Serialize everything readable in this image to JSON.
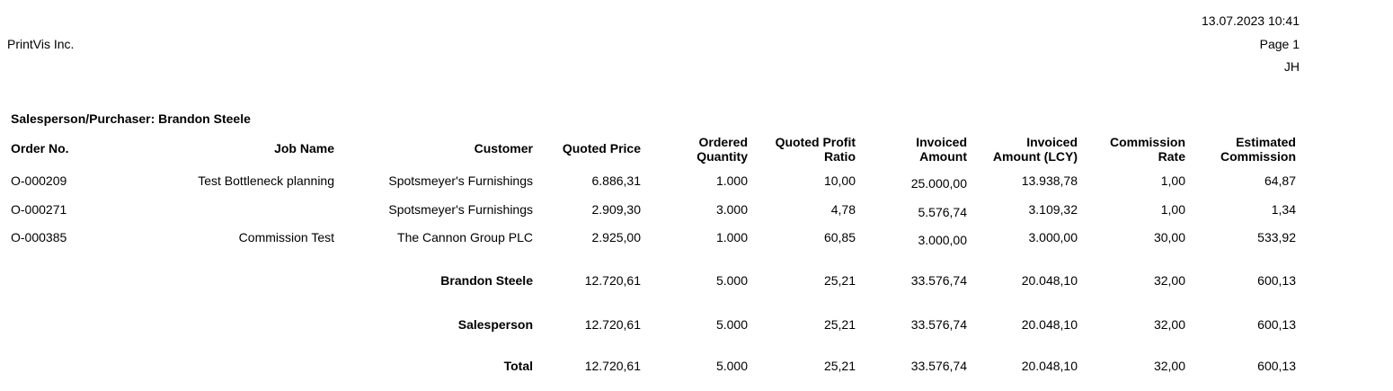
{
  "header": {
    "company": "PrintVis Inc.",
    "datetime": "13.07.2023 10:41",
    "page": "Page 1",
    "user": "JH"
  },
  "group": {
    "title": "Salesperson/Purchaser: Brandon Steele"
  },
  "columns": {
    "order_no": "Order No.",
    "job_name": "Job Name",
    "customer": "Customer",
    "quoted_price": "Quoted Price",
    "ordered_quantity_1": "Ordered",
    "ordered_quantity_2": "Quantity",
    "quoted_profit_ratio_1": "Quoted Profit",
    "quoted_profit_ratio_2": "Ratio",
    "invoiced_amount_1": "Invoiced",
    "invoiced_amount_2": "Amount",
    "invoiced_amount_lcy_1": "Invoiced",
    "invoiced_amount_lcy_2": "Amount (LCY)",
    "commission_rate_1": "Commission",
    "commission_rate_2": "Rate",
    "estimated_commission_1": "Estimated",
    "estimated_commission_2": "Commission"
  },
  "rows": [
    {
      "order_no": "O-000209",
      "job_name": "Test Bottleneck planning",
      "customer": "Spotsmeyer's Furnishings",
      "quoted_price": "6.886,31",
      "ordered_quantity": "1.000",
      "quoted_profit_ratio": "10,00",
      "invoiced_amount": "25.000,00",
      "invoiced_amount_lcy": "13.938,78",
      "commission_rate": "1,00",
      "estimated_commission": "64,87"
    },
    {
      "order_no": "O-000271",
      "job_name": "",
      "customer": "Spotsmeyer's Furnishings",
      "quoted_price": "2.909,30",
      "ordered_quantity": "3.000",
      "quoted_profit_ratio": "4,78",
      "invoiced_amount": "5.576,74",
      "invoiced_amount_lcy": "3.109,32",
      "commission_rate": "1,00",
      "estimated_commission": "1,34"
    },
    {
      "order_no": "O-000385",
      "job_name": "Commission Test",
      "customer": "The Cannon Group PLC",
      "quoted_price": "2.925,00",
      "ordered_quantity": "1.000",
      "quoted_profit_ratio": "60,85",
      "invoiced_amount": "3.000,00",
      "invoiced_amount_lcy": "3.000,00",
      "commission_rate": "30,00",
      "estimated_commission": "533,92"
    }
  ],
  "totals": [
    {
      "label": "Brandon Steele",
      "quoted_price": "12.720,61",
      "ordered_quantity": "5.000",
      "quoted_profit_ratio": "25,21",
      "invoiced_amount": "33.576,74",
      "invoiced_amount_lcy": "20.048,10",
      "commission_rate": "32,00",
      "estimated_commission": "600,13"
    },
    {
      "label": "Salesperson",
      "quoted_price": "12.720,61",
      "ordered_quantity": "5.000",
      "quoted_profit_ratio": "25,21",
      "invoiced_amount": "33.576,74",
      "invoiced_amount_lcy": "20.048,10",
      "commission_rate": "32,00",
      "estimated_commission": "600,13"
    },
    {
      "label": "Total",
      "quoted_price": "12.720,61",
      "ordered_quantity": "5.000",
      "quoted_profit_ratio": "25,21",
      "invoiced_amount": "33.576,74",
      "invoiced_amount_lcy": "20.048,10",
      "commission_rate": "32,00",
      "estimated_commission": "600,13"
    }
  ]
}
